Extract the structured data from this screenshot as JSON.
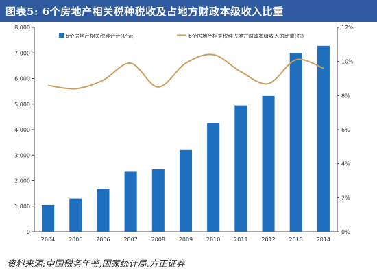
{
  "title": "图表5:   6个房地产相关税种税收及占地方财政本级收入比重",
  "source": "资料来源:中国税务年鉴,国家统计局,方正证券",
  "chart_data": {
    "type": "bar",
    "categories": [
      "2004",
      "2005",
      "2006",
      "2007",
      "2008",
      "2009",
      "2010",
      "2011",
      "2012",
      "2013",
      "2014"
    ],
    "series": [
      {
        "name": "6个房地产相关税种合计(亿元)",
        "type": "bar",
        "axis": "left",
        "color": "#1f6fbf",
        "values": [
          1050,
          1300,
          1670,
          2350,
          2450,
          3200,
          4250,
          4950,
          5320,
          7000,
          7280
        ]
      },
      {
        "name": "6个房地产相关税种占地方财政本级收入的比重(右)",
        "type": "line",
        "axis": "right",
        "color": "#c8a060",
        "values": [
          8.6,
          8.4,
          8.9,
          9.9,
          8.5,
          9.9,
          10.4,
          9.4,
          8.7,
          10.1,
          9.6
        ]
      }
    ],
    "y_left": {
      "ylim": [
        0,
        8000
      ],
      "ticks": [
        "0",
        "1,000",
        "2,000",
        "3,000",
        "4,000",
        "5,000",
        "6,000",
        "7,000",
        "8,000"
      ]
    },
    "y_right": {
      "ylim": [
        0,
        12
      ],
      "ticks": [
        "0%",
        "2%",
        "4%",
        "6%",
        "8%",
        "10%",
        "12%"
      ]
    },
    "legend_position": "top",
    "grid": false
  }
}
